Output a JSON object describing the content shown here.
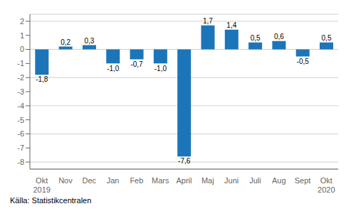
{
  "chart_data": {
    "type": "bar",
    "categories": [
      "Okt\n2019",
      "Nov",
      "Dec",
      "Jan",
      "Feb",
      "Mars",
      "April",
      "Maj",
      "Juni",
      "Juli",
      "Aug",
      "Sept",
      "Okt\n2020"
    ],
    "values": [
      -1.8,
      0.2,
      0.3,
      -1.0,
      -0.7,
      -1.0,
      -7.6,
      1.7,
      1.4,
      0.5,
      0.6,
      -0.5,
      0.5
    ],
    "value_labels": [
      "-1,8",
      "0,2",
      "0,3",
      "-1,0",
      "-0,7",
      "-1,0",
      "-7,6",
      "1,7",
      "1,4",
      "0,5",
      "0,6",
      "-0,5",
      "0,5"
    ],
    "data_labels": true,
    "color": "#1c75b8",
    "ylim": [
      -8.5,
      2.5
    ],
    "yticks": [
      -8,
      -7,
      -6,
      -5,
      -4,
      -3,
      -2,
      -1,
      0,
      1,
      2
    ],
    "grid": true,
    "annotations": [
      "Källa: Statistikcentralen"
    ]
  }
}
